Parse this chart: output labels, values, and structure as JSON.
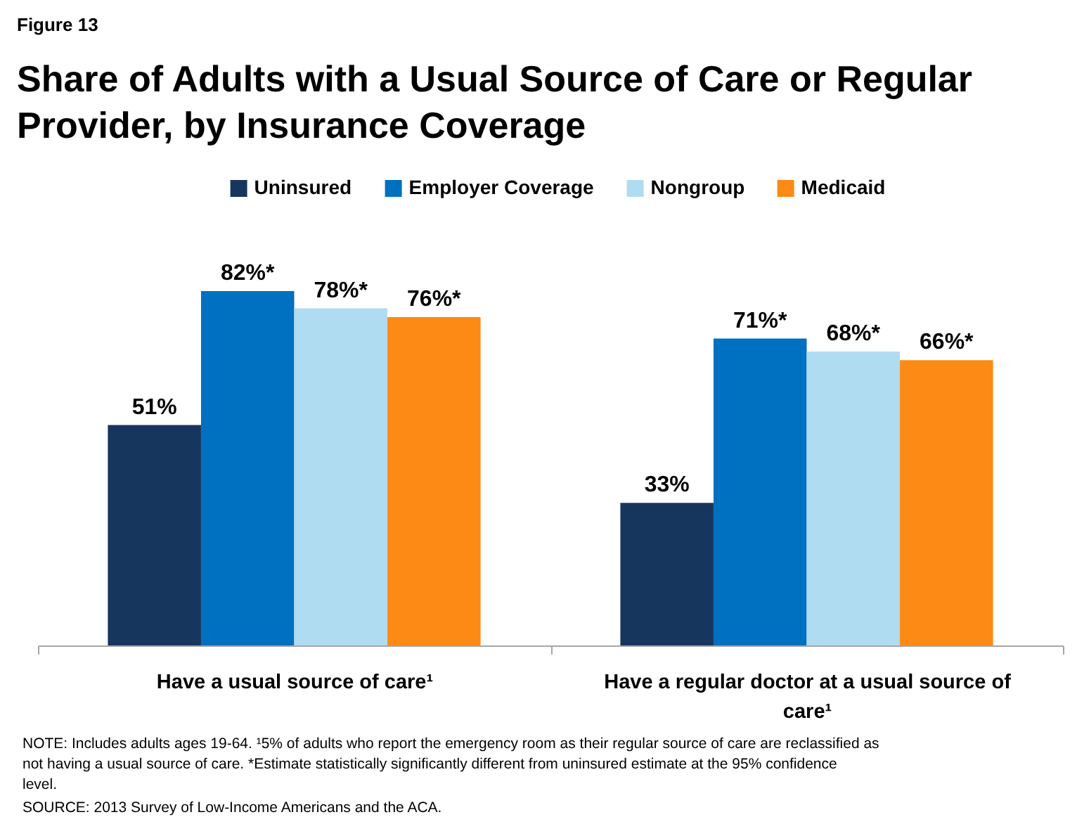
{
  "chart_data": {
    "type": "bar",
    "subtitle": "Figure 13",
    "title": "Share of Adults with a Usual Source of Care or Regular Provider, by Insurance Coverage",
    "categories": [
      "Have a usual source of care¹",
      "Have a regular doctor at a usual source of care¹"
    ],
    "series": [
      {
        "name": "Uninsured",
        "color": "#17365d",
        "values": [
          51,
          33
        ],
        "value_labels": [
          "51%",
          "33%"
        ]
      },
      {
        "name": "Employer Coverage",
        "color": "#0070c0",
        "values": [
          82,
          71
        ],
        "value_labels": [
          "82%*",
          "71%*"
        ]
      },
      {
        "name": "Nongroup",
        "color": "#b0dcf2",
        "values": [
          78,
          68
        ],
        "value_labels": [
          "78%*",
          "68%*"
        ]
      },
      {
        "name": "Medicaid",
        "color": "#fd8a14",
        "values": [
          76,
          66
        ],
        "value_labels": [
          "76%*",
          "66%*"
        ]
      }
    ],
    "legend": "top",
    "annotations": [
      "NOTE: Includes adults ages 19-64. ¹5% of adults who report the emergency room as their regular source of care are reclassified as not having a usual source of care. *Estimate statistically significantly different from uninsured estimate at the 95% confidence level.",
      "SOURCE: 2013 Survey of Low-Income Americans and the ACA."
    ]
  }
}
